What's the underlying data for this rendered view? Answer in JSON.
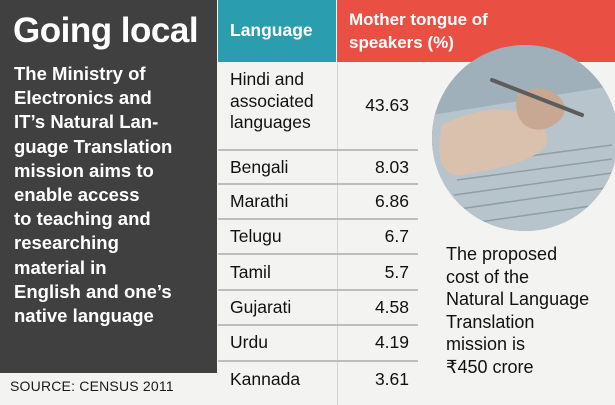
{
  "panel": {
    "title": "Going local",
    "description": "The Ministry of\nElectronics and\nIT’s Natural Lan-\nguage Translation\nmission aims to\nenable access\nto teaching and\nresearching\nmaterial in\nEnglish and one’s\nnative language"
  },
  "source": "SOURCE: CENSUS 2011",
  "table": {
    "headers": {
      "language": "Language",
      "value": "Mother tongue of speakers (%)"
    },
    "rows": [
      {
        "language": "Hindi and\nassociated\nlanguages",
        "value": "43.63"
      },
      {
        "language": "Bengali",
        "value": "8.03"
      },
      {
        "language": "Marathi",
        "value": "6.86"
      },
      {
        "language": "Telugu",
        "value": "6.7"
      },
      {
        "language": "Tamil",
        "value": "5.7"
      },
      {
        "language": "Gujarati",
        "value": "4.58"
      },
      {
        "language": "Urdu",
        "value": "4.19"
      },
      {
        "language": "Kannada",
        "value": "3.61"
      }
    ]
  },
  "caption": "The proposed\ncost of the\nNatural Language\nTranslation\nmission is\n₹450 crore",
  "colors": {
    "panel_bg": "#404040",
    "language_header": "#2a9dae",
    "value_header": "#ea4f43"
  }
}
